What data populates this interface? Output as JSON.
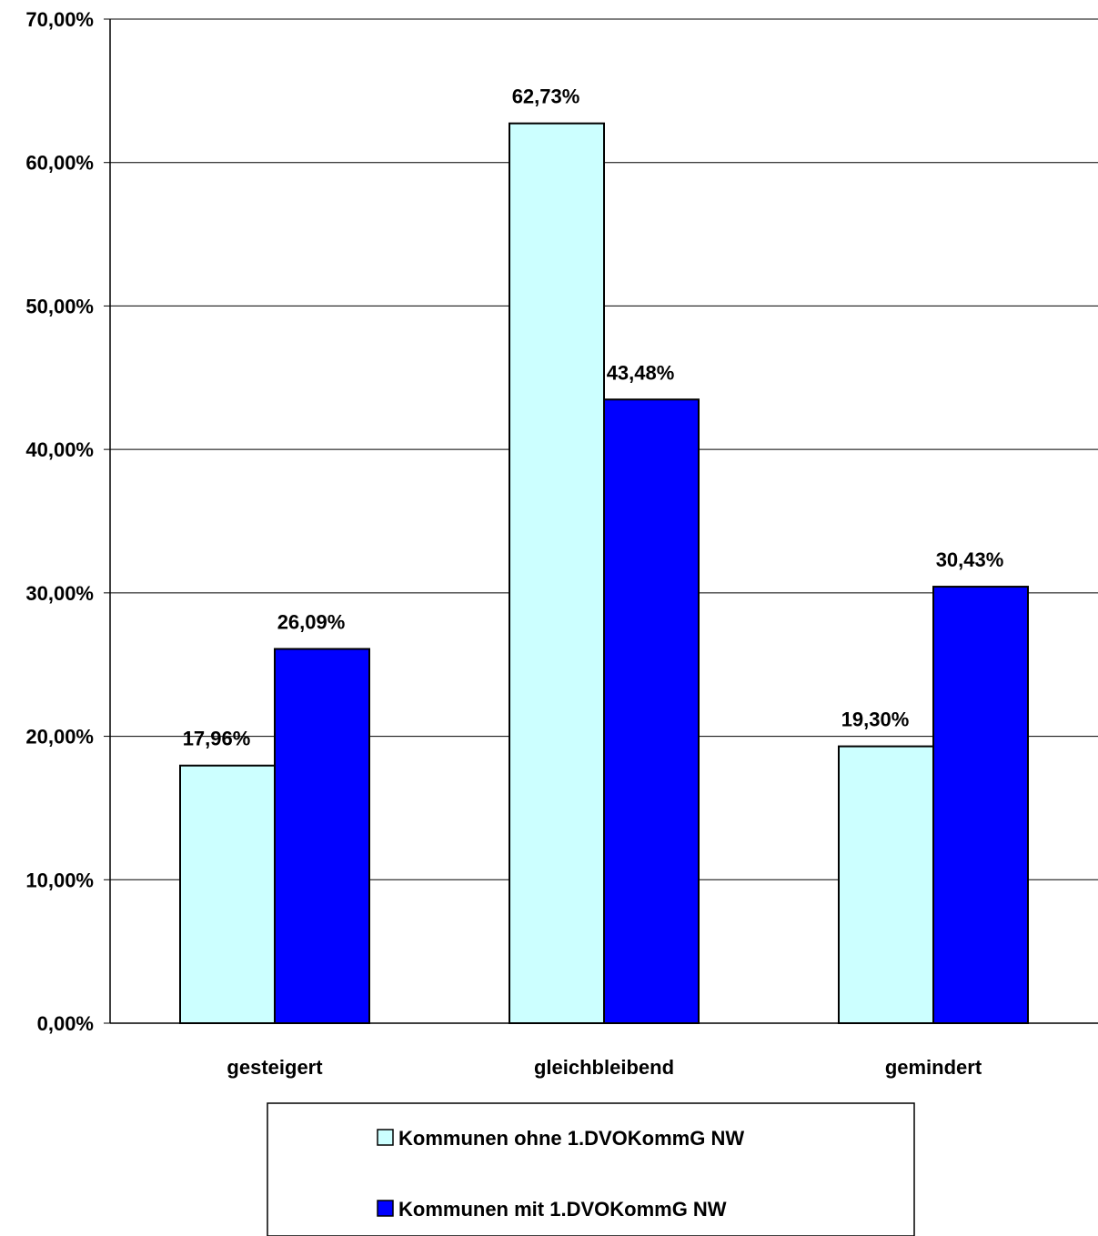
{
  "chart_data": {
    "type": "bar",
    "categories": [
      "gesteigert",
      "gleichbleibend",
      "gemindert"
    ],
    "series": [
      {
        "name": "Kommunen ohne 1.DVOKommG NW",
        "values": [
          17.96,
          62.73,
          19.3
        ],
        "labels": [
          "17,96%",
          "62,73%",
          "19,30%"
        ],
        "color": "#CCFFFF"
      },
      {
        "name": "Kommunen mit 1.DVOKommG NW",
        "values": [
          26.09,
          43.48,
          30.43
        ],
        "labels": [
          "26,09%",
          "43,48%",
          "30,43%"
        ],
        "color": "#0000FF"
      }
    ],
    "yticks": [
      "0,00%",
      "10,00%",
      "20,00%",
      "30,00%",
      "40,00%",
      "50,00%",
      "60,00%",
      "70,00%"
    ],
    "ylim": [
      0,
      70
    ],
    "title": "",
    "xlabel": "",
    "ylabel": "",
    "grid": true,
    "legend_position": "bottom"
  }
}
